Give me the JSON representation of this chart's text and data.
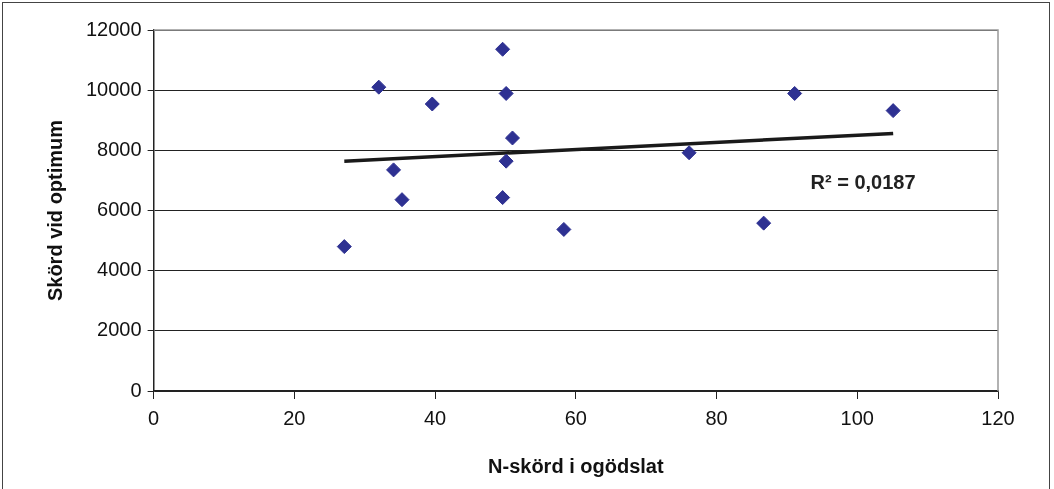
{
  "chart_data": {
    "type": "scatter",
    "xlabel": "N-skörd i ogödslat",
    "ylabel": "Skörd vid optimum",
    "xlim": [
      0,
      120
    ],
    "xticks": [
      0,
      20,
      40,
      60,
      80,
      100,
      120
    ],
    "ylim": [
      0,
      12000
    ],
    "yticks": [
      0,
      2000,
      4000,
      6000,
      8000,
      10000,
      12000
    ],
    "grid": "y",
    "legend": false,
    "marker": "diamond",
    "series": [
      {
        "color": "#2e3192",
        "x": [
          27.1,
          32.0,
          34.1,
          35.3,
          39.6,
          49.6,
          50.1,
          51.0,
          50.1,
          49.6,
          58.3,
          76.1,
          86.7,
          91.1,
          105.1
        ],
        "values": [
          4800,
          10100,
          7350,
          6360,
          9540,
          11360,
          9890,
          8410,
          7640,
          6430,
          5370,
          7920,
          5580,
          9890,
          9320
        ]
      },
      {
        "type": "line",
        "color": "#1a1a1a",
        "marker": "none",
        "x": [
          27.1,
          105.1
        ],
        "values": [
          7640,
          8560
        ]
      }
    ],
    "annotations": [
      "R² = 0,0187"
    ]
  }
}
